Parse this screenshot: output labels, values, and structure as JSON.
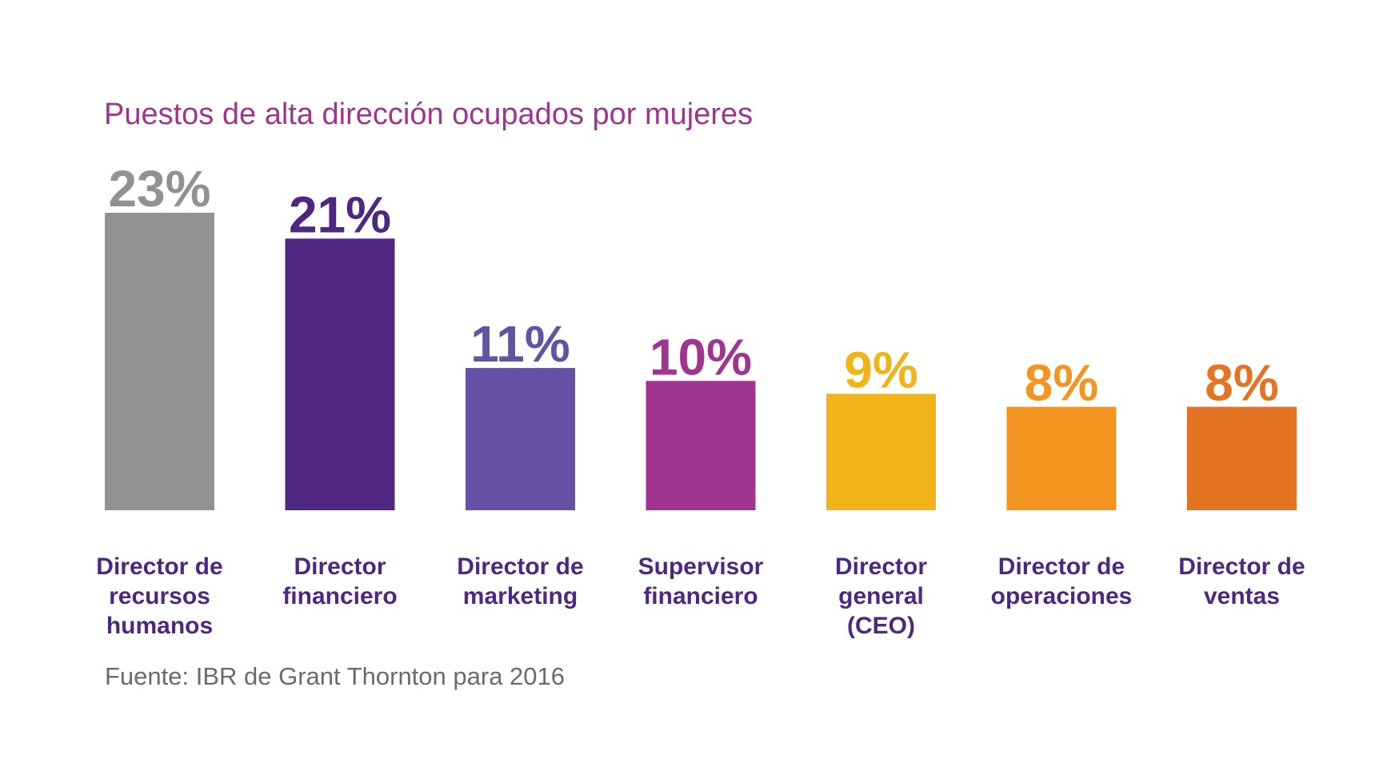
{
  "chart_data": {
    "type": "bar",
    "title": "Puestos de alta dirección ocupados por mujeres",
    "source": "Fuente: IBR de Grant Thornton para 2016",
    "xlabel": "",
    "ylabel": "",
    "grid": false,
    "legend": "none",
    "ylim": [
      0,
      23
    ],
    "categories": [
      [
        "Director de",
        "recursos",
        "humanos"
      ],
      [
        "Director",
        "financiero"
      ],
      [
        "Director de",
        "marketing"
      ],
      [
        "Supervisor",
        "financiero"
      ],
      [
        "Director",
        "general",
        "(CEO)"
      ],
      [
        "Director de",
        "operaciones"
      ],
      [
        "Director de",
        "ventas"
      ]
    ],
    "values": [
      23,
      21,
      11,
      10,
      9,
      8,
      8
    ],
    "value_labels": [
      "23%",
      "21%",
      "11%",
      "10%",
      "9%",
      "8%",
      "8%"
    ],
    "colors": [
      "#929292",
      "#4e2781",
      "#6453a4",
      "#a03590",
      "#f0b418",
      "#f49421",
      "#e57324"
    ],
    "category_label_color": "#4e2781"
  }
}
